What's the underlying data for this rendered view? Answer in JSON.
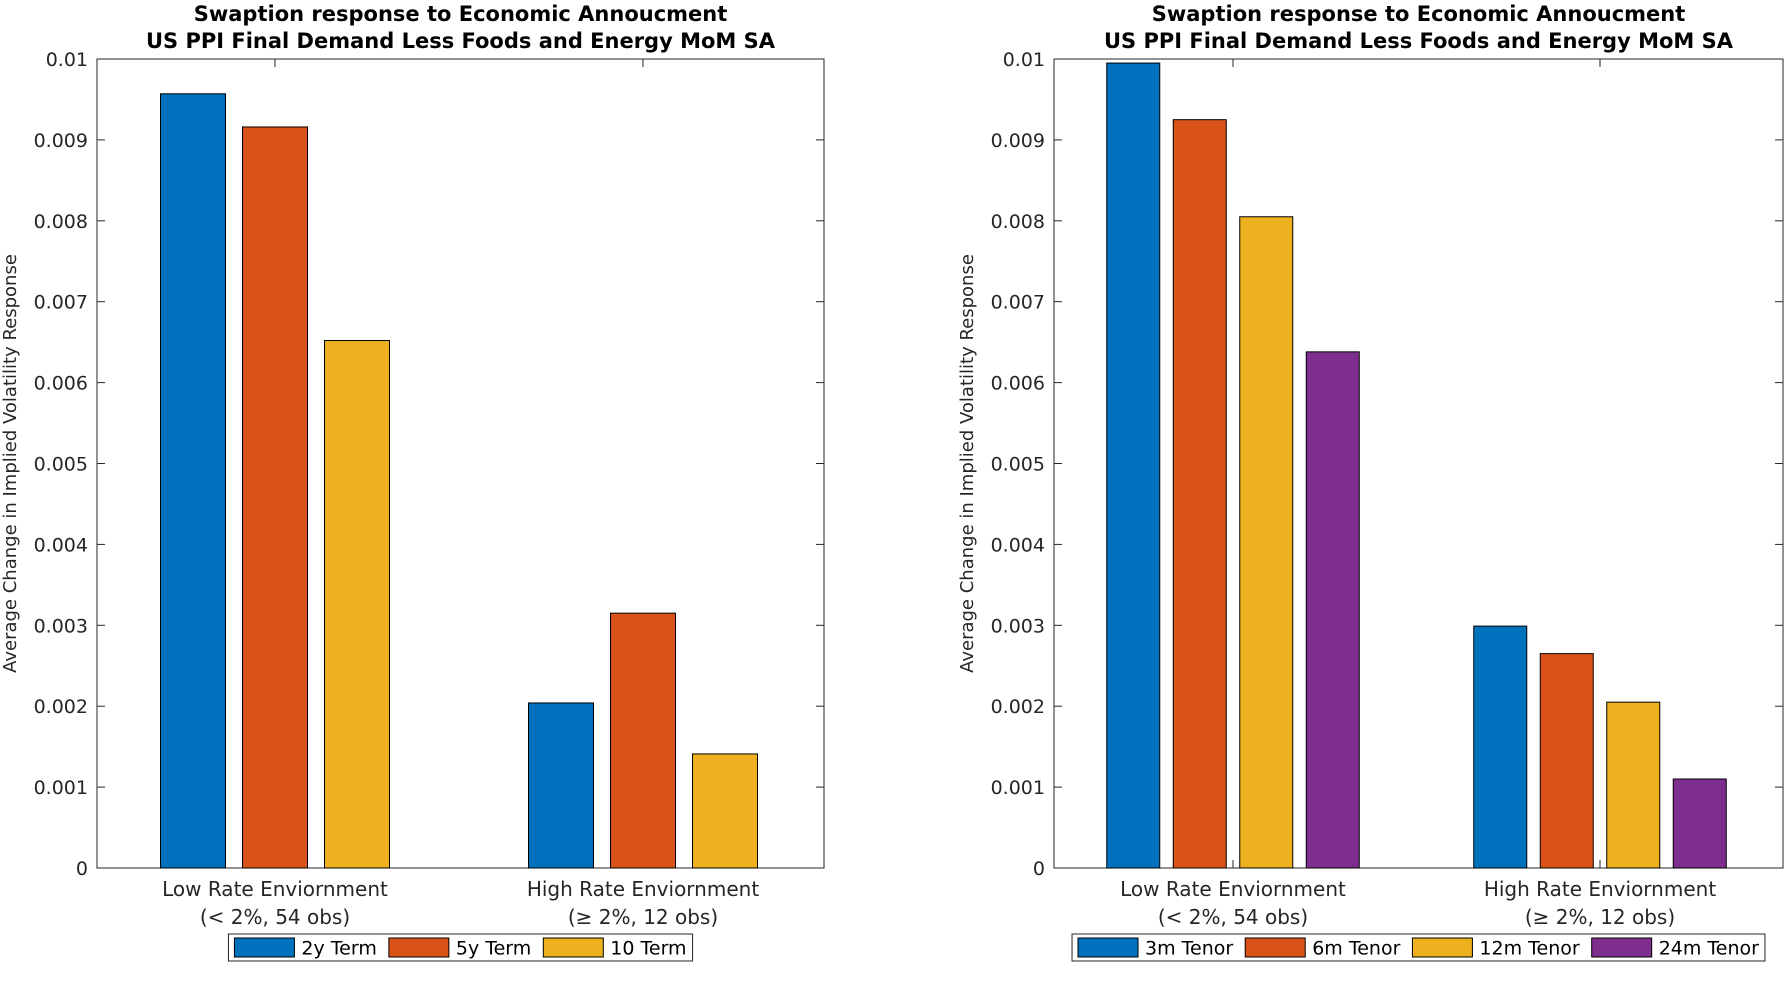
{
  "chart_data": [
    {
      "type": "bar",
      "title": "Swaption response to Economic Annoucment",
      "subtitle": "US PPI Final Demand Less Foods and Energy MoM SA",
      "xlabel": "",
      "ylabel": "Average Change in Implied Volatility Response",
      "ylim": [
        0,
        0.01
      ],
      "yticks": [
        "0",
        "0.001",
        "0.002",
        "0.003",
        "0.004",
        "0.005",
        "0.006",
        "0.007",
        "0.008",
        "0.009",
        "0.01"
      ],
      "categories": [
        [
          "Low Rate Enviornment",
          "(< 2%, 54 obs)"
        ],
        [
          "High Rate Enviornment",
          "(≥ 2%, 12 obs)"
        ]
      ],
      "series": [
        {
          "name": "2y Term",
          "color": "#0072BD",
          "values": [
            0.00957,
            0.00204
          ]
        },
        {
          "name": "5y Term",
          "color": "#D95319",
          "values": [
            0.00916,
            0.00315
          ]
        },
        {
          "name": "10 Term",
          "color": "#EDB120",
          "values": [
            0.00652,
            0.00141
          ]
        }
      ],
      "grid": false,
      "legend": "bottom-center"
    },
    {
      "type": "bar",
      "title": "Swaption response to Economic Annoucment",
      "subtitle": "US PPI Final Demand Less Foods and Energy MoM SA",
      "xlabel": "",
      "ylabel": "Average Change in Implied Volatility Response",
      "ylim": [
        0,
        0.01
      ],
      "yticks": [
        "0",
        "0.001",
        "0.002",
        "0.003",
        "0.004",
        "0.005",
        "0.006",
        "0.007",
        "0.008",
        "0.009",
        "0.01"
      ],
      "categories": [
        [
          "Low Rate Enviornment",
          "(< 2%, 54 obs)"
        ],
        [
          "High Rate Enviornment",
          "(≥ 2%, 12 obs)"
        ]
      ],
      "series": [
        {
          "name": "3m Tenor",
          "color": "#0072BD",
          "values": [
            0.00995,
            0.00299
          ]
        },
        {
          "name": "6m Tenor",
          "color": "#D95319",
          "values": [
            0.00925,
            0.00265
          ]
        },
        {
          "name": "12m Tenor",
          "color": "#EDB120",
          "values": [
            0.00805,
            0.00205
          ]
        },
        {
          "name": "24m Tenor",
          "color": "#7E2F8E",
          "values": [
            0.00638,
            0.0011
          ]
        }
      ],
      "grid": false,
      "legend": "bottom-center"
    }
  ]
}
